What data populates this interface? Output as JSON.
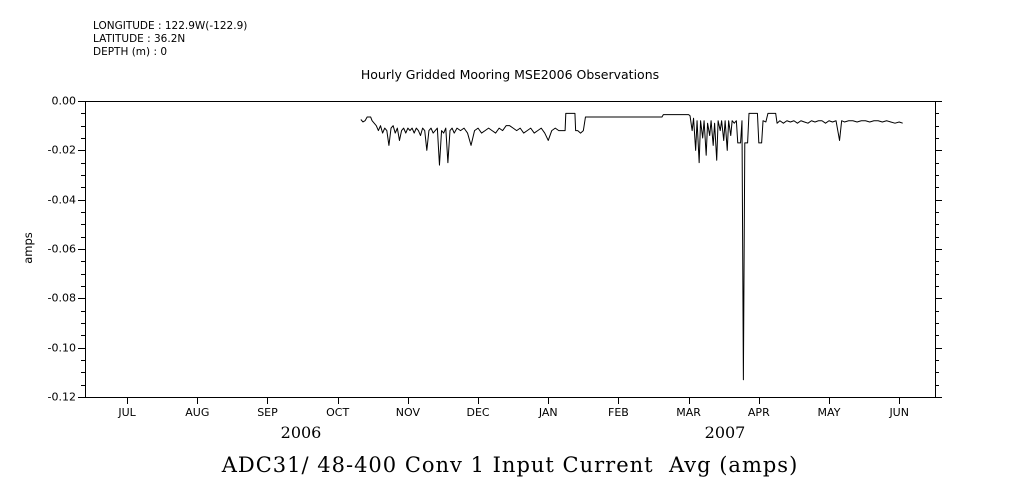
{
  "header": {
    "longitude": "LONGITUDE : 122.9W(-122.9)",
    "latitude": "LATITUDE : 36.2N",
    "depth": "DEPTH (m) : 0"
  },
  "plot": {
    "title": "Hourly Gridded Mooring MSE2006 Observations",
    "ylabel": "amps",
    "bottom_title": "ADC31/ 48-400 Conv 1 Input Current  Avg (amps)",
    "year_labels": [
      {
        "text": "2006"
      },
      {
        "text": "2007"
      }
    ]
  },
  "chart_data": {
    "type": "line",
    "title": "Hourly Gridded Mooring MSE2006 Observations",
    "xlabel": "",
    "ylabel": "amps",
    "x_unit": "months, 0 = JUL 2006 tick, 11 = JUN 2007 tick",
    "xlim": [
      -0.6,
      11.51
    ],
    "ylim": [
      -0.12,
      0.0
    ],
    "x_tick_positions": [
      0,
      1,
      2,
      3,
      4,
      5,
      6,
      7,
      8,
      9,
      10,
      11
    ],
    "x_tick_labels": [
      "JUL",
      "AUG",
      "SEP",
      "OCT",
      "NOV",
      "DEC",
      "JAN",
      "FEB",
      "MAR",
      "APR",
      "MAY",
      "JUN"
    ],
    "y_tick_values": [
      0,
      -0.02,
      -0.04,
      -0.06,
      -0.08,
      -0.1,
      -0.12
    ],
    "y_tick_labels": [
      "0.00",
      "-0.02",
      "-0.04",
      "-0.06",
      "-0.08",
      "-0.10",
      "-0.12"
    ],
    "y_minor_step": 0.005,
    "grid": false,
    "legend": "none",
    "line_color": "#000000",
    "background": "#ffffff",
    "series": [
      {
        "name": "ADC31/ 48-400 Conv 1 Input Current Avg (amps)",
        "points": [
          [
            3.33,
            -0.0075
          ],
          [
            3.36,
            -0.0085
          ],
          [
            3.39,
            -0.008
          ],
          [
            3.42,
            -0.0065
          ],
          [
            3.47,
            -0.0065
          ],
          [
            3.49,
            -0.008
          ],
          [
            3.52,
            -0.009
          ],
          [
            3.55,
            -0.01
          ],
          [
            3.58,
            -0.012
          ],
          [
            3.61,
            -0.01
          ],
          [
            3.64,
            -0.013
          ],
          [
            3.67,
            -0.011
          ],
          [
            3.7,
            -0.012
          ],
          [
            3.73,
            -0.018
          ],
          [
            3.76,
            -0.011
          ],
          [
            3.79,
            -0.01
          ],
          [
            3.82,
            -0.013
          ],
          [
            3.85,
            -0.011
          ],
          [
            3.88,
            -0.016
          ],
          [
            3.91,
            -0.012
          ],
          [
            3.94,
            -0.011
          ],
          [
            3.97,
            -0.013
          ],
          [
            4.0,
            -0.011
          ],
          [
            4.03,
            -0.012
          ],
          [
            4.06,
            -0.011
          ],
          [
            4.09,
            -0.013
          ],
          [
            4.12,
            -0.011
          ],
          [
            4.15,
            -0.012
          ],
          [
            4.18,
            -0.014
          ],
          [
            4.21,
            -0.011
          ],
          [
            4.24,
            -0.012
          ],
          [
            4.27,
            -0.02
          ],
          [
            4.3,
            -0.012
          ],
          [
            4.33,
            -0.011
          ],
          [
            4.36,
            -0.013
          ],
          [
            4.39,
            -0.012
          ],
          [
            4.42,
            -0.011
          ],
          [
            4.45,
            -0.026
          ],
          [
            4.48,
            -0.012
          ],
          [
            4.51,
            -0.013
          ],
          [
            4.54,
            -0.011
          ],
          [
            4.57,
            -0.025
          ],
          [
            4.6,
            -0.012
          ],
          [
            4.63,
            -0.011
          ],
          [
            4.66,
            -0.013
          ],
          [
            4.7,
            -0.011
          ],
          [
            4.75,
            -0.012
          ],
          [
            4.8,
            -0.011
          ],
          [
            4.85,
            -0.013
          ],
          [
            4.9,
            -0.018
          ],
          [
            4.95,
            -0.012
          ],
          [
            5.0,
            -0.011
          ],
          [
            5.05,
            -0.013
          ],
          [
            5.1,
            -0.012
          ],
          [
            5.15,
            -0.011
          ],
          [
            5.2,
            -0.012
          ],
          [
            5.25,
            -0.013
          ],
          [
            5.3,
            -0.011
          ],
          [
            5.35,
            -0.012
          ],
          [
            5.4,
            -0.01
          ],
          [
            5.45,
            -0.01
          ],
          [
            5.5,
            -0.011
          ],
          [
            5.55,
            -0.012
          ],
          [
            5.6,
            -0.011
          ],
          [
            5.65,
            -0.013
          ],
          [
            5.7,
            -0.012
          ],
          [
            5.75,
            -0.011
          ],
          [
            5.8,
            -0.013
          ],
          [
            5.85,
            -0.012
          ],
          [
            5.9,
            -0.011
          ],
          [
            5.95,
            -0.013
          ],
          [
            6.0,
            -0.016
          ],
          [
            6.05,
            -0.012
          ],
          [
            6.1,
            -0.011
          ],
          [
            6.15,
            -0.012
          ],
          [
            6.2,
            -0.012
          ],
          [
            6.24,
            -0.012
          ],
          [
            6.25,
            -0.005
          ],
          [
            6.38,
            -0.005
          ],
          [
            6.39,
            -0.012
          ],
          [
            6.42,
            -0.012
          ],
          [
            6.46,
            -0.013
          ],
          [
            6.5,
            -0.012
          ],
          [
            6.53,
            -0.0065
          ],
          [
            6.7,
            -0.0065
          ],
          [
            6.9,
            -0.0065
          ],
          [
            7.1,
            -0.0065
          ],
          [
            7.3,
            -0.0065
          ],
          [
            7.5,
            -0.0065
          ],
          [
            7.62,
            -0.0065
          ],
          [
            7.64,
            -0.0055
          ],
          [
            7.8,
            -0.0055
          ],
          [
            7.95,
            -0.0055
          ],
          [
            8.0,
            -0.0055
          ],
          [
            8.02,
            -0.006
          ],
          [
            8.05,
            -0.012
          ],
          [
            8.07,
            -0.007
          ],
          [
            8.1,
            -0.02
          ],
          [
            8.12,
            -0.008
          ],
          [
            8.15,
            -0.025
          ],
          [
            8.17,
            -0.008
          ],
          [
            8.2,
            -0.015
          ],
          [
            8.22,
            -0.008
          ],
          [
            8.25,
            -0.022
          ],
          [
            8.27,
            -0.009
          ],
          [
            8.3,
            -0.014
          ],
          [
            8.32,
            -0.008
          ],
          [
            8.35,
            -0.018
          ],
          [
            8.37,
            -0.009
          ],
          [
            8.4,
            -0.024
          ],
          [
            8.42,
            -0.008
          ],
          [
            8.45,
            -0.012
          ],
          [
            8.47,
            -0.008
          ],
          [
            8.5,
            -0.016
          ],
          [
            8.52,
            -0.008
          ],
          [
            8.55,
            -0.02
          ],
          [
            8.57,
            -0.008
          ],
          [
            8.6,
            -0.014
          ],
          [
            8.62,
            -0.008
          ],
          [
            8.65,
            -0.009
          ],
          [
            8.68,
            -0.008
          ],
          [
            8.7,
            -0.017
          ],
          [
            8.74,
            -0.017
          ],
          [
            8.76,
            -0.008
          ],
          [
            8.78,
            -0.113
          ],
          [
            8.8,
            -0.017
          ],
          [
            8.84,
            -0.017
          ],
          [
            8.86,
            -0.005
          ],
          [
            8.98,
            -0.005
          ],
          [
            9.0,
            -0.017
          ],
          [
            9.04,
            -0.017
          ],
          [
            9.06,
            -0.008
          ],
          [
            9.1,
            -0.0085
          ],
          [
            9.13,
            -0.005
          ],
          [
            9.24,
            -0.005
          ],
          [
            9.26,
            -0.009
          ],
          [
            9.3,
            -0.008
          ],
          [
            9.35,
            -0.009
          ],
          [
            9.4,
            -0.008
          ],
          [
            9.45,
            -0.0085
          ],
          [
            9.5,
            -0.008
          ],
          [
            9.55,
            -0.009
          ],
          [
            9.6,
            -0.008
          ],
          [
            9.65,
            -0.0085
          ],
          [
            9.7,
            -0.009
          ],
          [
            9.75,
            -0.008
          ],
          [
            9.8,
            -0.0085
          ],
          [
            9.85,
            -0.008
          ],
          [
            9.9,
            -0.008
          ],
          [
            9.95,
            -0.009
          ],
          [
            10.0,
            -0.008
          ],
          [
            10.05,
            -0.0085
          ],
          [
            10.1,
            -0.008
          ],
          [
            10.15,
            -0.016
          ],
          [
            10.18,
            -0.008
          ],
          [
            10.22,
            -0.0085
          ],
          [
            10.28,
            -0.008
          ],
          [
            10.34,
            -0.008
          ],
          [
            10.4,
            -0.0085
          ],
          [
            10.46,
            -0.008
          ],
          [
            10.52,
            -0.008
          ],
          [
            10.58,
            -0.0085
          ],
          [
            10.64,
            -0.008
          ],
          [
            10.7,
            -0.008
          ],
          [
            10.76,
            -0.0085
          ],
          [
            10.82,
            -0.008
          ],
          [
            10.88,
            -0.0085
          ],
          [
            10.94,
            -0.009
          ],
          [
            11.0,
            -0.0085
          ],
          [
            11.05,
            -0.009
          ]
        ]
      }
    ]
  }
}
